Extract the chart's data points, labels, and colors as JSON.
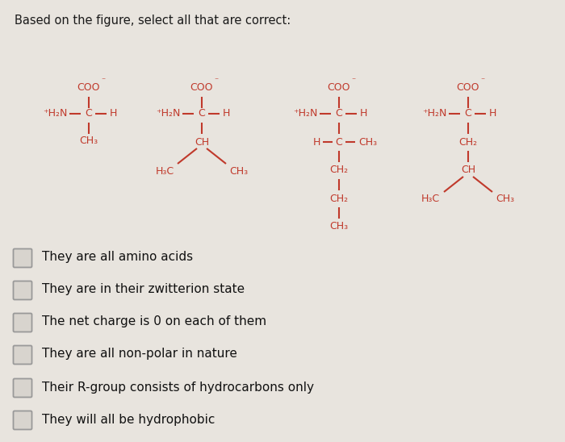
{
  "title": "Based on the figure, select all that are correct:",
  "title_fontsize": 10.5,
  "title_color": "#1a1a1a",
  "bg_color": "#e8e4de",
  "struct_color": "#c0392b",
  "checkbox_options": [
    "They are all amino acids",
    "They are in their zwitterion state",
    "The net charge is 0 on each of them",
    "They are all non-polar in nature",
    "Their R-group consists of hydrocarbons only",
    "They will all be hydrophobic"
  ],
  "checkbox_color": "#999999",
  "checkbox_fill": "#d8d4ce",
  "option_fontsize": 11,
  "option_color": "#111111",
  "struct_fontsize": 9,
  "struct_lw": 1.5
}
